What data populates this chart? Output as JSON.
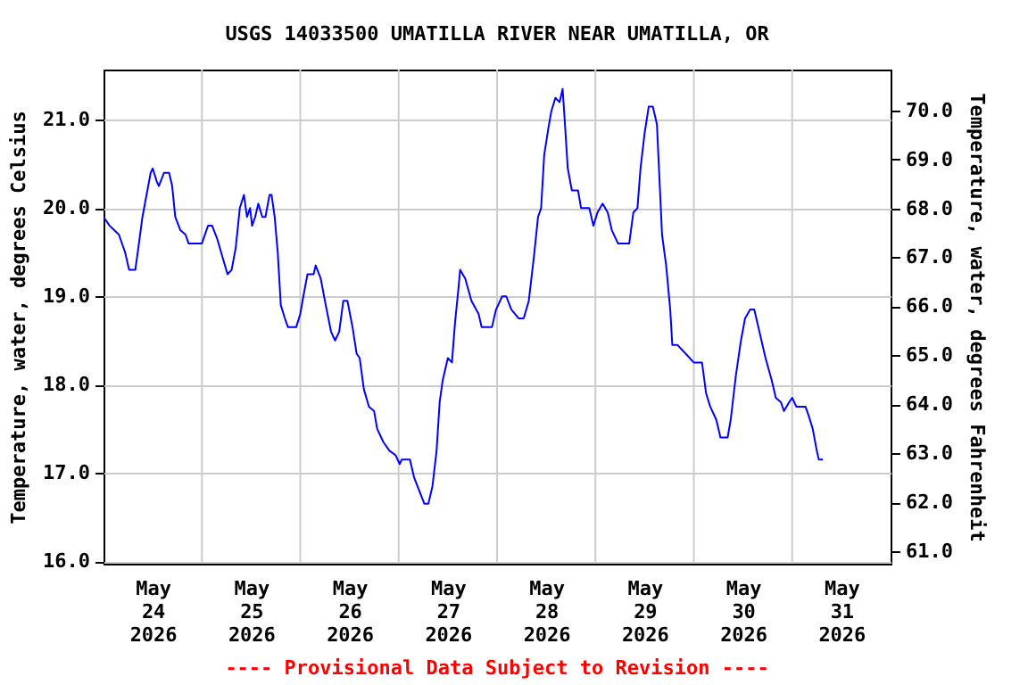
{
  "chart_data": {
    "type": "line",
    "title": "USGS 14033500 UMATILLA RIVER NEAR UMATILLA, OR",
    "ylabel": "Temperature, water, degrees Celsius",
    "y2label": "Temperature, water, degrees Fahrenheit",
    "annotations": [
      "---- Provisional Data Subject to Revision ----"
    ],
    "x": [
      "2026-05-24T00:00",
      "2026-05-24T01:30",
      "2026-05-24T03:45",
      "2026-05-24T05:15",
      "2026-05-24T06:15",
      "2026-05-24T07:45",
      "2026-05-24T08:30",
      "2026-05-24T09:30",
      "2026-05-24T10:30",
      "2026-05-24T11:30",
      "2026-05-24T12:00",
      "2026-05-24T13:00",
      "2026-05-24T13:30",
      "2026-05-24T14:45",
      "2026-05-24T16:00",
      "2026-05-24T16:45",
      "2026-05-24T17:30",
      "2026-05-24T18:45",
      "2026-05-24T20:00",
      "2026-05-24T20:45",
      "2026-05-25T00:00",
      "2026-05-25T01:30",
      "2026-05-25T02:30",
      "2026-05-25T03:45",
      "2026-05-25T05:00",
      "2026-05-25T06:15",
      "2026-05-25T07:15",
      "2026-05-25T08:15",
      "2026-05-25T09:15",
      "2026-05-25T10:15",
      "2026-05-25T11:00",
      "2026-05-25T11:45",
      "2026-05-25T12:15",
      "2026-05-25T13:00",
      "2026-05-25T13:45",
      "2026-05-25T14:45",
      "2026-05-25T15:30",
      "2026-05-25T16:30",
      "2026-05-25T17:00",
      "2026-05-25T17:45",
      "2026-05-25T18:30",
      "2026-05-25T19:15",
      "2026-05-25T20:15",
      "2026-05-25T21:00",
      "2026-05-25T23:00",
      "2026-05-26T00:00",
      "2026-05-26T00:45",
      "2026-05-26T01:45",
      "2026-05-26T03:15",
      "2026-05-26T03:45",
      "2026-05-26T05:00",
      "2026-05-26T06:00",
      "2026-05-26T07:30",
      "2026-05-26T08:30",
      "2026-05-26T09:30",
      "2026-05-26T10:30",
      "2026-05-26T11:30",
      "2026-05-26T12:45",
      "2026-05-26T13:45",
      "2026-05-26T14:30",
      "2026-05-26T15:30",
      "2026-05-26T16:45",
      "2026-05-26T18:00",
      "2026-05-26T18:45",
      "2026-05-26T20:15",
      "2026-05-26T21:45",
      "2026-05-26T23:15",
      "2026-05-27T00:15",
      "2026-05-27T00:45",
      "2026-05-27T02:45",
      "2026-05-27T03:45",
      "2026-05-27T05:00",
      "2026-05-27T06:15",
      "2026-05-27T07:15",
      "2026-05-27T08:15",
      "2026-05-27T09:15",
      "2026-05-27T10:00",
      "2026-05-27T10:45",
      "2026-05-27T12:00",
      "2026-05-27T13:00",
      "2026-05-27T13:45",
      "2026-05-27T14:30",
      "2026-05-27T15:00",
      "2026-05-27T16:15",
      "2026-05-27T17:45",
      "2026-05-27T19:30",
      "2026-05-27T20:15",
      "2026-05-27T22:45",
      "2026-05-27T23:45",
      "2026-05-28T01:15",
      "2026-05-28T02:15",
      "2026-05-28T03:30",
      "2026-05-28T05:15",
      "2026-05-28T06:30",
      "2026-05-28T07:45",
      "2026-05-28T09:00",
      "2026-05-28T10:00",
      "2026-05-28T10:45",
      "2026-05-28T11:30",
      "2026-05-28T12:30",
      "2026-05-28T13:15",
      "2026-05-28T14:15",
      "2026-05-28T15:15",
      "2026-05-28T16:00",
      "2026-05-28T16:30",
      "2026-05-28T17:15",
      "2026-05-28T18:15",
      "2026-05-28T19:45",
      "2026-05-28T20:30",
      "2026-05-28T22:30",
      "2026-05-28T23:30",
      "2026-05-29T00:30",
      "2026-05-29T01:45",
      "2026-05-29T03:00",
      "2026-05-29T04:00",
      "2026-05-29T05:30",
      "2026-05-29T08:15",
      "2026-05-29T09:15",
      "2026-05-29T10:15",
      "2026-05-29T11:00",
      "2026-05-29T12:00",
      "2026-05-29T13:00",
      "2026-05-29T14:00",
      "2026-05-29T15:00",
      "2026-05-29T15:45",
      "2026-05-29T16:15",
      "2026-05-29T17:15",
      "2026-05-29T18:15",
      "2026-05-29T18:45",
      "2026-05-29T20:00",
      "2026-05-29T22:00",
      "2026-05-30T00:00",
      "2026-05-30T02:00",
      "2026-05-30T03:00",
      "2026-05-30T04:00",
      "2026-05-30T05:30",
      "2026-05-30T06:30",
      "2026-05-30T08:15",
      "2026-05-30T09:00",
      "2026-05-30T10:15",
      "2026-05-30T11:30",
      "2026-05-30T12:30",
      "2026-05-30T13:45",
      "2026-05-30T14:45",
      "2026-05-30T16:00",
      "2026-05-30T17:30",
      "2026-05-30T19:00",
      "2026-05-30T20:00",
      "2026-05-30T21:15",
      "2026-05-30T22:00",
      "2026-05-30T23:15",
      "2026-05-31T00:00",
      "2026-05-31T01:00",
      "2026-05-31T03:15",
      "2026-05-31T04:00",
      "2026-05-31T05:00",
      "2026-05-31T06:00",
      "2026-05-31T06:30",
      "2026-05-31T07:30"
    ],
    "series": [
      {
        "color": "#0000ff",
        "values": [
          19.9,
          19.8,
          19.7,
          19.5,
          19.3,
          19.3,
          19.55,
          19.9,
          20.15,
          20.4,
          20.45,
          20.3,
          20.25,
          20.4,
          20.4,
          20.25,
          19.9,
          19.75,
          19.7,
          19.6,
          19.6,
          19.8,
          19.8,
          19.65,
          19.45,
          19.25,
          19.3,
          19.55,
          20.0,
          20.15,
          19.9,
          20.0,
          19.8,
          19.9,
          20.05,
          19.9,
          19.9,
          20.15,
          20.15,
          19.9,
          19.5,
          18.9,
          18.75,
          18.65,
          18.65,
          18.8,
          19.0,
          19.25,
          19.25,
          19.35,
          19.2,
          18.95,
          18.6,
          18.5,
          18.6,
          18.95,
          18.95,
          18.65,
          18.35,
          18.3,
          17.95,
          17.75,
          17.7,
          17.5,
          17.35,
          17.25,
          17.2,
          17.1,
          17.15,
          17.15,
          16.95,
          16.8,
          16.65,
          16.65,
          16.85,
          17.25,
          17.8,
          18.05,
          18.3,
          18.25,
          18.7,
          19.05,
          19.3,
          19.2,
          18.95,
          18.8,
          18.65,
          18.65,
          18.85,
          19.0,
          19.0,
          18.85,
          18.75,
          18.75,
          18.95,
          19.45,
          19.9,
          20.0,
          20.6,
          20.9,
          21.1,
          21.25,
          21.2,
          21.35,
          21.0,
          20.45,
          20.2,
          20.2,
          20.0,
          20.0,
          19.8,
          19.95,
          20.05,
          19.95,
          19.75,
          19.6,
          19.6,
          19.95,
          20.0,
          20.45,
          20.85,
          21.15,
          21.15,
          20.95,
          20.2,
          19.7,
          19.35,
          18.85,
          18.45,
          18.45,
          18.35,
          18.25,
          18.25,
          17.9,
          17.75,
          17.6,
          17.4,
          17.4,
          17.6,
          18.1,
          18.5,
          18.75,
          18.85,
          18.85,
          18.6,
          18.3,
          18.05,
          17.85,
          17.8,
          17.7,
          17.8,
          17.85,
          17.75,
          17.75,
          17.65,
          17.5,
          17.25,
          17.15,
          17.15
        ]
      }
    ],
    "xlim": [
      "2026-05-24T00:00",
      "2026-06-01T00:00"
    ],
    "xticks": [
      {
        "value": "2026-05-24T12:00",
        "label": "May\n24\n2026"
      },
      {
        "value": "2026-05-25T12:00",
        "label": "May\n25\n2026"
      },
      {
        "value": "2026-05-26T12:00",
        "label": "May\n26\n2026"
      },
      {
        "value": "2026-05-27T12:00",
        "label": "May\n27\n2026"
      },
      {
        "value": "2026-05-28T12:00",
        "label": "May\n28\n2026"
      },
      {
        "value": "2026-05-29T12:00",
        "label": "May\n29\n2026"
      },
      {
        "value": "2026-05-30T12:00",
        "label": "May\n30\n2026"
      },
      {
        "value": "2026-05-31T12:00",
        "label": "May\n31\n2026"
      },
      {
        "value": "2026-05-25T00:00",
        "label": null
      },
      {
        "value": "2026-05-26T00:00",
        "label": null
      },
      {
        "value": "2026-05-27T00:00",
        "label": null
      },
      {
        "value": "2026-05-28T00:00",
        "label": null
      },
      {
        "value": "2026-05-29T00:00",
        "label": null
      },
      {
        "value": "2026-05-30T00:00",
        "label": null
      },
      {
        "value": "2026-05-31T00:00",
        "label": null
      }
    ],
    "ylim": [
      15.97,
      21.57
    ],
    "yticks": [
      {
        "value": 16,
        "label": "16.0"
      },
      {
        "value": 17,
        "label": "17.0"
      },
      {
        "value": 18,
        "label": "18.0"
      },
      {
        "value": 19,
        "label": "19.0"
      },
      {
        "value": 20,
        "label": "20.0"
      },
      {
        "value": 21,
        "label": "21.0"
      }
    ],
    "y2lim": [
      60.75,
      70.83
    ],
    "y2ticks": [
      {
        "value": 61,
        "label": "61.0"
      },
      {
        "value": 62,
        "label": "62.0"
      },
      {
        "value": 63,
        "label": "63.0"
      },
      {
        "value": 64,
        "label": "64.0"
      },
      {
        "value": 65,
        "label": "65.0"
      },
      {
        "value": 66,
        "label": "66.0"
      },
      {
        "value": 67,
        "label": "67.0"
      },
      {
        "value": 68,
        "label": "68.0"
      },
      {
        "value": 69,
        "label": "69.0"
      },
      {
        "value": 70,
        "label": "70.0"
      }
    ],
    "grid": true
  }
}
